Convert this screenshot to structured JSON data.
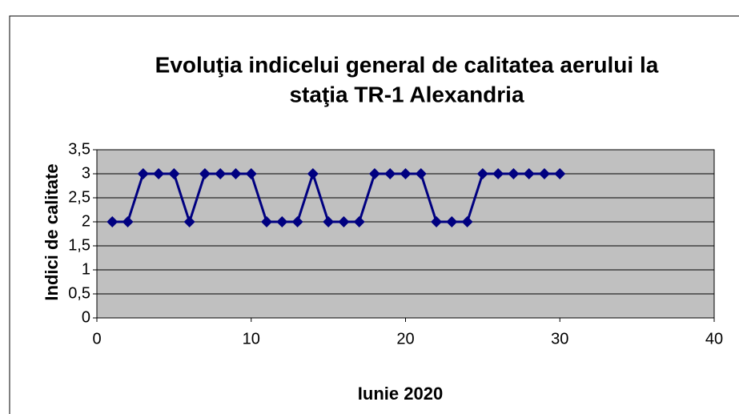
{
  "chart_data": {
    "type": "line",
    "title": [
      "Evoluţia indicelui general de calitatea aerului la",
      "staţia TR-1 Alexandria"
    ],
    "xlabel": "Iunie 2020",
    "ylabel": "Indici de calitate",
    "x": [
      1,
      2,
      3,
      4,
      5,
      6,
      7,
      8,
      9,
      10,
      11,
      12,
      13,
      14,
      15,
      16,
      17,
      18,
      19,
      20,
      21,
      22,
      23,
      24,
      25,
      26,
      27,
      28,
      29,
      30
    ],
    "series": [
      {
        "color": "#000080",
        "values": [
          2,
          2,
          3,
          3,
          3,
          2,
          3,
          3,
          3,
          3,
          2,
          2,
          2,
          3,
          2,
          2,
          2,
          3,
          3,
          3,
          3,
          2,
          2,
          2,
          3,
          3,
          3,
          3,
          3,
          3
        ]
      }
    ],
    "xlim": [
      0,
      40
    ],
    "xticks": [
      0,
      10,
      20,
      30,
      40
    ],
    "ylim": [
      0,
      3.5
    ],
    "yticks": [
      0,
      {
        "value": 0.5,
        "label": "0,5"
      },
      1,
      {
        "value": 1.5,
        "label": "1,5"
      },
      2,
      {
        "value": 2.5,
        "label": "2,5"
      },
      3,
      {
        "value": 3.5,
        "label": "3,5"
      }
    ],
    "grid": true
  }
}
